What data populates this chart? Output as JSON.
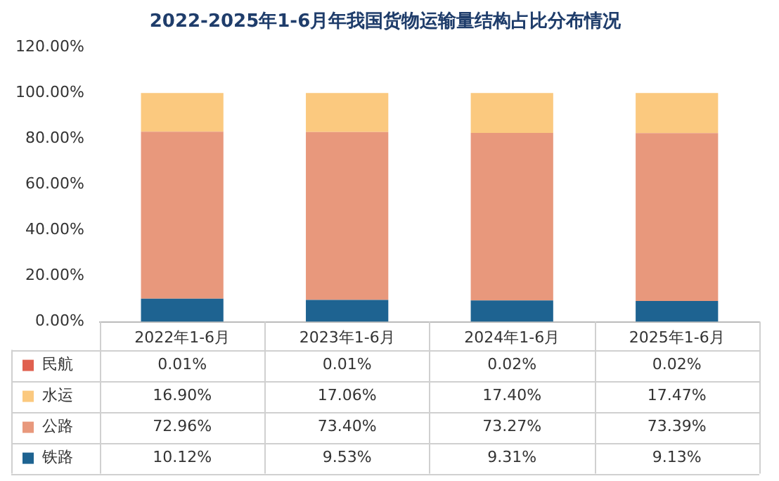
{
  "chart_data": {
    "type": "bar",
    "title": "2022-2025年1-6月年我国货物运输量结构占比分布情况",
    "stacked": true,
    "categories": [
      "2022年1-6月",
      "2023年1-6月",
      "2024年1-6月",
      "2025年1-6月"
    ],
    "series": [
      {
        "name": "铁路",
        "color": "#1e6391",
        "values": [
          10.12,
          9.53,
          9.31,
          9.13
        ],
        "value_labels": [
          "10.12%",
          "9.53%",
          "9.31%",
          "9.13%"
        ]
      },
      {
        "name": "公路",
        "color": "#e8987c",
        "values": [
          72.96,
          73.4,
          73.27,
          73.39
        ],
        "value_labels": [
          "72.96%",
          "73.40%",
          "73.27%",
          "73.39%"
        ]
      },
      {
        "name": "水运",
        "color": "#fbc97f",
        "values": [
          16.9,
          17.06,
          17.4,
          17.47
        ],
        "value_labels": [
          "16.90%",
          "17.06%",
          "17.40%",
          "17.47%"
        ]
      },
      {
        "name": "民航",
        "color": "#e0604f",
        "values": [
          0.01,
          0.01,
          0.02,
          0.02
        ],
        "value_labels": [
          "0.01%",
          "0.01%",
          "0.02%",
          "0.02%"
        ]
      }
    ],
    "ylim": [
      0,
      120
    ],
    "yticks": [
      {
        "value": 0,
        "label": "0.00%"
      },
      {
        "value": 20,
        "label": "20.00%"
      },
      {
        "value": 40,
        "label": "40.00%"
      },
      {
        "value": 60,
        "label": "60.00%"
      },
      {
        "value": 80,
        "label": "80.00%"
      },
      {
        "value": 100,
        "label": "100.00%"
      },
      {
        "value": 120,
        "label": "120.00%"
      }
    ],
    "grid": false,
    "legend": "bottom"
  }
}
